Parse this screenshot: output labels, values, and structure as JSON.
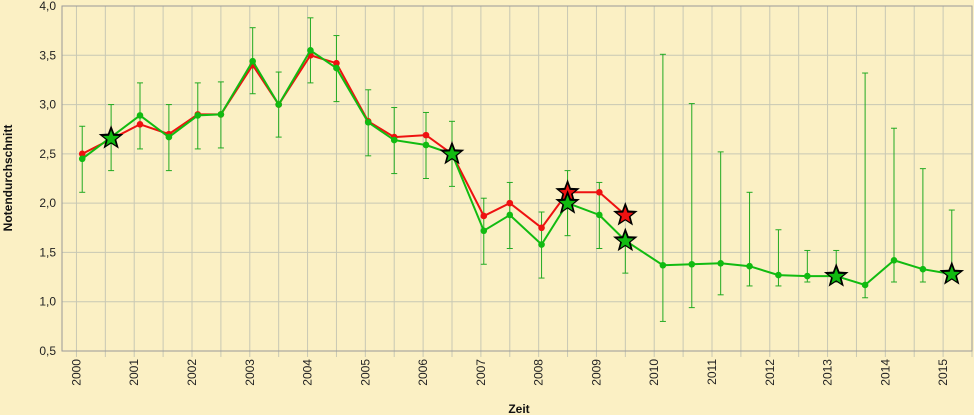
{
  "chart_data": {
    "type": "line",
    "xlabel": "Zeit",
    "ylabel": "Notendurchschnitt",
    "xlim": [
      1999.75,
      2015.5
    ],
    "ylim": [
      0.5,
      4.0
    ],
    "y_ticks": [
      "0,5",
      "1,0",
      "1,5",
      "2,0",
      "2,5",
      "3,0",
      "3,5",
      "4,0"
    ],
    "x_ticks": [
      "2000",
      "2001",
      "2002",
      "2003",
      "2004",
      "2005",
      "2006",
      "2007",
      "2008",
      "2009",
      "2010",
      "2011",
      "2012",
      "2013",
      "2014",
      "2015"
    ],
    "grid": true,
    "colors": {
      "background": "#fbf0c4",
      "grid": "#c8c8b4",
      "red_series": "#ee1111",
      "green_series": "#11bb11",
      "error_bar": "#22aa22"
    },
    "series": [
      {
        "color": "#ee1111",
        "points": [
          [
            2000.1,
            2.5
          ],
          [
            2000.6,
            2.65
          ],
          [
            2001.1,
            2.8
          ],
          [
            2001.6,
            2.7
          ],
          [
            2002.1,
            2.9
          ],
          [
            2002.5,
            2.9
          ],
          [
            2003.05,
            3.4
          ],
          [
            2003.5,
            3.0
          ],
          [
            2004.05,
            3.5
          ],
          [
            2004.5,
            3.42
          ],
          [
            2005.05,
            2.83
          ],
          [
            2005.5,
            2.67
          ],
          [
            2006.05,
            2.69
          ],
          [
            2006.5,
            2.5
          ],
          [
            2007.05,
            1.87
          ],
          [
            2007.5,
            2.0
          ],
          [
            2008.05,
            1.75
          ],
          [
            2008.5,
            2.11
          ],
          [
            2009.05,
            2.11
          ],
          [
            2009.5,
            1.88
          ]
        ]
      },
      {
        "color": "#11bb11",
        "points": [
          [
            2000.1,
            2.45
          ],
          [
            2000.6,
            2.67
          ],
          [
            2001.1,
            2.89
          ],
          [
            2001.6,
            2.67
          ],
          [
            2002.1,
            2.89
          ],
          [
            2002.5,
            2.9
          ],
          [
            2003.05,
            3.44
          ],
          [
            2003.5,
            3.0
          ],
          [
            2004.05,
            3.55
          ],
          [
            2004.5,
            3.37
          ],
          [
            2005.05,
            2.82
          ],
          [
            2005.5,
            2.64
          ],
          [
            2006.05,
            2.59
          ],
          [
            2006.5,
            2.5
          ],
          [
            2007.05,
            1.72
          ],
          [
            2007.5,
            1.88
          ],
          [
            2008.05,
            1.58
          ],
          [
            2008.5,
            2.0
          ],
          [
            2009.05,
            1.88
          ],
          [
            2009.5,
            1.62
          ],
          [
            2010.15,
            1.37
          ],
          [
            2010.65,
            1.38
          ],
          [
            2011.15,
            1.39
          ],
          [
            2011.65,
            1.36
          ],
          [
            2012.15,
            1.27
          ],
          [
            2012.65,
            1.26
          ],
          [
            2013.15,
            1.26
          ],
          [
            2013.65,
            1.17
          ],
          [
            2014.15,
            1.42
          ],
          [
            2014.65,
            1.33
          ],
          [
            2015.15,
            1.28
          ]
        ]
      }
    ],
    "error_bars": [
      [
        2000.1,
        2.11,
        2.78
      ],
      [
        2000.6,
        2.33,
        3.0
      ],
      [
        2001.1,
        2.55,
        3.22
      ],
      [
        2001.6,
        2.33,
        3.0
      ],
      [
        2002.1,
        2.55,
        3.22
      ],
      [
        2002.5,
        2.56,
        3.23
      ],
      [
        2003.05,
        3.11,
        3.78
      ],
      [
        2003.5,
        2.67,
        3.33
      ],
      [
        2004.05,
        3.22,
        3.88
      ],
      [
        2004.5,
        3.03,
        3.7
      ],
      [
        2005.05,
        2.48,
        3.15
      ],
      [
        2005.5,
        2.3,
        2.97
      ],
      [
        2006.05,
        2.25,
        2.92
      ],
      [
        2006.5,
        2.17,
        2.83
      ],
      [
        2007.05,
        1.38,
        2.05
      ],
      [
        2007.5,
        1.54,
        2.21
      ],
      [
        2008.05,
        1.24,
        1.91
      ],
      [
        2008.5,
        1.67,
        2.33
      ],
      [
        2009.05,
        1.54,
        2.21
      ],
      [
        2009.5,
        1.29,
        1.62
      ],
      [
        2010.15,
        0.8,
        3.51
      ],
      [
        2010.65,
        0.94,
        3.01
      ],
      [
        2011.15,
        1.07,
        2.52
      ],
      [
        2011.65,
        1.16,
        2.11
      ],
      [
        2012.15,
        1.16,
        1.73
      ],
      [
        2012.65,
        1.2,
        1.52
      ],
      [
        2013.15,
        1.2,
        1.52
      ],
      [
        2013.65,
        1.04,
        3.32
      ],
      [
        2014.15,
        1.2,
        2.76
      ],
      [
        2014.65,
        1.2,
        2.35
      ],
      [
        2015.15,
        1.27,
        1.93
      ]
    ],
    "star_markers": [
      {
        "x": 2000.6,
        "y": 2.66,
        "color": "#11bb11"
      },
      {
        "x": 2006.5,
        "y": 2.5,
        "color": "#11bb11"
      },
      {
        "x": 2008.5,
        "y": 2.11,
        "color": "#ee1111"
      },
      {
        "x": 2008.5,
        "y": 2.0,
        "color": "#11bb11"
      },
      {
        "x": 2009.5,
        "y": 1.88,
        "color": "#ee1111"
      },
      {
        "x": 2009.5,
        "y": 1.62,
        "color": "#11bb11"
      },
      {
        "x": 2013.15,
        "y": 1.26,
        "color": "#11bb11"
      },
      {
        "x": 2015.15,
        "y": 1.28,
        "color": "#11bb11"
      }
    ]
  }
}
